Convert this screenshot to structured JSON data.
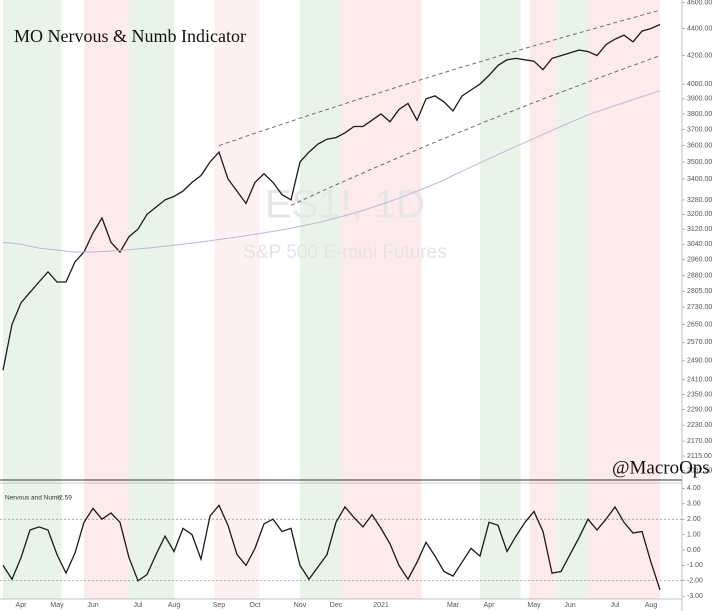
{
  "chart_data": [
    {
      "type": "line",
      "title": "MO Nervous & Numb Indicator",
      "watermark": "ES1!, 1D",
      "watermark_subtitle": "S&P 500 E-mini Futures",
      "annotation": "@MacroOps",
      "log_scale": true,
      "categories": [
        null,
        null,
        "Apr",
        null,
        null,
        null,
        "May",
        null,
        null,
        null,
        "Jun",
        null,
        null,
        null,
        null,
        "Jul",
        null,
        null,
        null,
        "Aug",
        null,
        null,
        null,
        null,
        "Sep",
        null,
        null,
        null,
        "Oct",
        null,
        null,
        null,
        null,
        "Nov",
        null,
        null,
        null,
        "Dec",
        null,
        null,
        null,
        null,
        "2021",
        null,
        null,
        null,
        null,
        null,
        null,
        null,
        "Mar",
        null,
        null,
        null,
        "Apr",
        null,
        null,
        null,
        null,
        "May",
        null,
        null,
        null,
        "Jun",
        null,
        null,
        null,
        null,
        "Jul",
        null,
        null,
        null,
        "Aug",
        null
      ],
      "series": [
        {
          "color": "#1a1a1a",
          "values": [
            2450,
            2650,
            2750,
            2800,
            2850,
            2900,
            2850,
            2850,
            2950,
            3000,
            3100,
            3180,
            3050,
            3000,
            3080,
            3120,
            3200,
            3240,
            3280,
            3300,
            3330,
            3380,
            3420,
            3500,
            3560,
            3400,
            3330,
            3260,
            3380,
            3430,
            3380,
            3310,
            3280,
            3500,
            3560,
            3610,
            3640,
            3650,
            3680,
            3720,
            3720,
            3760,
            3800,
            3750,
            3830,
            3870,
            3760,
            3900,
            3920,
            3880,
            3820,
            3920,
            3960,
            4000,
            4060,
            4130,
            4170,
            4180,
            4170,
            4160,
            4100,
            4180,
            4200,
            4220,
            4240,
            4230,
            4200,
            4280,
            4320,
            4350,
            4300,
            4380,
            4400,
            4430
          ]
        },
        {
          "color": "#b9b8e3",
          "values": [
            3050,
            3045,
            3040,
            3030,
            3020,
            3015,
            3010,
            3005,
            3000,
            3000,
            3000,
            3002,
            3005,
            3008,
            3012,
            3016,
            3020,
            3025,
            3030,
            3035,
            3040,
            3046,
            3052,
            3058,
            3065,
            3072,
            3078,
            3085,
            3092,
            3100,
            3108,
            3116,
            3125,
            3135,
            3145,
            3155,
            3167,
            3180,
            3193,
            3207,
            3222,
            3238,
            3255,
            3272,
            3290,
            3310,
            3330,
            3350,
            3372,
            3394,
            3420,
            3445,
            3470,
            3495,
            3520,
            3545,
            3570,
            3595,
            3620,
            3645,
            3670,
            3695,
            3720,
            3745,
            3770,
            3795,
            3815,
            3835,
            3855,
            3875,
            3895,
            3915,
            3935,
            3955
          ]
        },
        {
          "color": "#6e6e6e",
          "dashed": true,
          "values": [
            null,
            null,
            null,
            null,
            null,
            null,
            null,
            null,
            null,
            null,
            null,
            null,
            null,
            null,
            null,
            null,
            null,
            null,
            null,
            null,
            null,
            null,
            null,
            null,
            3600,
            3619,
            3638,
            3658,
            3677,
            3696,
            3715,
            3734,
            3753,
            3773,
            3792,
            3811,
            3830,
            3849,
            3868,
            3888,
            3907,
            3926,
            3945,
            3964,
            3984,
            4003,
            4022,
            4041,
            4060,
            4079,
            4099,
            4118,
            4137,
            4156,
            4175,
            4195,
            4214,
            4233,
            4252,
            4271,
            4290,
            4310,
            4329,
            4348,
            4367,
            4386,
            4405,
            4425,
            4444,
            4463,
            4482,
            4501,
            4521,
            4540
          ]
        },
        {
          "color": "#6e6e6e",
          "dashed": true,
          "values": [
            null,
            null,
            null,
            null,
            null,
            null,
            null,
            null,
            null,
            null,
            null,
            null,
            null,
            null,
            null,
            null,
            null,
            null,
            null,
            null,
            null,
            null,
            null,
            null,
            null,
            null,
            null,
            null,
            null,
            null,
            null,
            null,
            3250,
            3273,
            3296,
            3320,
            3343,
            3366,
            3389,
            3412,
            3435,
            3459,
            3482,
            3505,
            3528,
            3551,
            3574,
            3598,
            3621,
            3644,
            3667,
            3690,
            3713,
            3737,
            3760,
            3783,
            3806,
            3829,
            3852,
            3876,
            3899,
            3922,
            3945,
            3968,
            3991,
            4014,
            4038,
            4061,
            4084,
            4107,
            4130,
            4153,
            4177,
            4200
          ]
        }
      ],
      "shading": [
        {
          "start": 0,
          "end": 6.5,
          "color": "#e9f4e8"
        },
        {
          "start": 9,
          "end": 14,
          "color": "#fdeaea"
        },
        {
          "start": 14,
          "end": 19,
          "color": "#e9f4e8"
        },
        {
          "start": 23.5,
          "end": 28.5,
          "color": "#fdf1f1"
        },
        {
          "start": 33,
          "end": 37.5,
          "color": "#e9f4e8"
        },
        {
          "start": 37.5,
          "end": 46.5,
          "color": "#fdeaea"
        },
        {
          "start": 53,
          "end": 57.5,
          "color": "#e9f4e8"
        },
        {
          "start": 58.5,
          "end": 61.5,
          "color": "#fdeaea"
        },
        {
          "start": 61.5,
          "end": 65,
          "color": "#e9f4e8"
        },
        {
          "start": 65,
          "end": 73,
          "color": "#fdeaea"
        }
      ],
      "ylim": [
        2030,
        4620
      ],
      "yticks": [
        {
          "value": 4600,
          "label": "4600.00"
        },
        {
          "value": 4400,
          "label": "4400.00"
        },
        {
          "value": 4200,
          "label": "4200.00"
        },
        {
          "value": 4000,
          "label": "4000.00"
        },
        {
          "value": 3900,
          "label": "3900.00"
        },
        {
          "value": 3800,
          "label": "3800.00"
        },
        {
          "value": 3700,
          "label": "3700.00"
        },
        {
          "value": 3600,
          "label": "3600.00"
        },
        {
          "value": 3500,
          "label": "3500.00"
        },
        {
          "value": 3400,
          "label": "3400.00"
        },
        {
          "value": 3280,
          "label": "3280.00"
        },
        {
          "value": 3200,
          "label": "3200.00"
        },
        {
          "value": 3120,
          "label": "3120.00"
        },
        {
          "value": 3040,
          "label": "3040.00"
        },
        {
          "value": 2960,
          "label": "2960.00"
        },
        {
          "value": 2880,
          "label": "2880.00"
        },
        {
          "value": 2805,
          "label": "2805.00"
        },
        {
          "value": 2730,
          "label": "2730.00"
        },
        {
          "value": 2650,
          "label": "2650.00"
        },
        {
          "value": 2570,
          "label": "2570.00"
        },
        {
          "value": 2490,
          "label": "2490.00"
        },
        {
          "value": 2410,
          "label": "2410.00"
        },
        {
          "value": 2350,
          "label": "2350.00"
        },
        {
          "value": 2290,
          "label": "2290.00"
        },
        {
          "value": 2230,
          "label": "2230.00"
        },
        {
          "value": 2170,
          "label": "2170.00"
        },
        {
          "value": 2115,
          "label": "2115.00"
        },
        {
          "value": 2062.5,
          "label": "2062.50"
        }
      ]
    },
    {
      "type": "line",
      "title": "Nervous and Numb",
      "series": [
        {
          "color": "#1a1a1a",
          "values": [
            -1.0,
            -1.9,
            -0.5,
            1.3,
            1.5,
            1.3,
            -0.3,
            -1.5,
            -0.2,
            1.8,
            2.7,
            2.0,
            2.4,
            1.8,
            -0.5,
            -2.0,
            -1.6,
            -0.3,
            0.9,
            -0.1,
            1.4,
            1.0,
            -0.6,
            2.2,
            2.9,
            1.6,
            -0.3,
            -1.0,
            0.1,
            1.7,
            2.0,
            1.2,
            1.4,
            -1.0,
            -1.9,
            -1.1,
            -0.3,
            1.8,
            2.8,
            2.1,
            1.5,
            2.3,
            1.4,
            0.4,
            -1.0,
            -1.9,
            -0.8,
            0.5,
            -0.4,
            -1.4,
            -1.7,
            -0.8,
            0.1,
            -0.4,
            1.8,
            1.6,
            -0.1,
            0.9,
            1.8,
            2.5,
            1.2,
            -1.5,
            -1.4,
            -0.3,
            0.8,
            2.0,
            1.3,
            2.0,
            2.8,
            1.8,
            1.1,
            1.2,
            -0.8,
            -2.59
          ]
        }
      ],
      "reference_lines": [
        2,
        -2
      ],
      "ylim": [
        -3.25,
        4.35
      ],
      "yticks": [
        {
          "value": 4,
          "label": "4.00"
        },
        {
          "value": 3,
          "label": "3.00"
        },
        {
          "value": 2,
          "label": "2.00"
        },
        {
          "value": 1,
          "label": "1.00"
        },
        {
          "value": 0,
          "label": "0.00"
        },
        {
          "value": -1,
          "label": "-1.00"
        },
        {
          "value": -2,
          "label": "-2.00"
        },
        {
          "value": -3,
          "label": "-3.00"
        }
      ]
    }
  ]
}
